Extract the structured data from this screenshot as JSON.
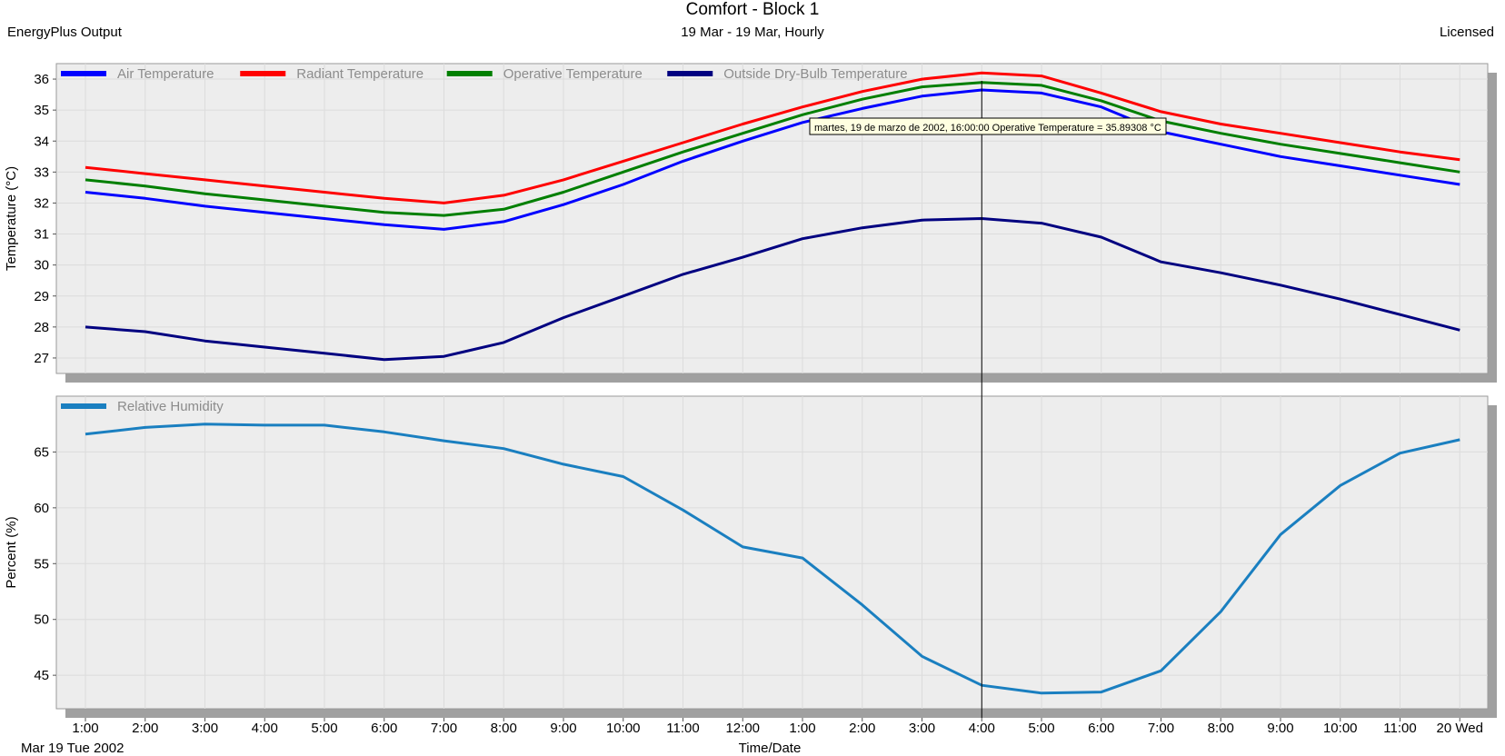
{
  "header": {
    "title": "Comfort - Block 1",
    "subtitle": "19 Mar - 19 Mar, Hourly",
    "left_label": "EnergyPlus Output",
    "right_label": "Licensed"
  },
  "tooltip": {
    "text": "martes, 19 de marzo de 2002, 16:00:00  Operative Temperature = 35.89308 °C",
    "x": "4:00"
  },
  "x_axis": {
    "ticks": [
      "1:00",
      "2:00",
      "3:00",
      "4:00",
      "5:00",
      "6:00",
      "7:00",
      "8:00",
      "9:00",
      "10:00",
      "11:00",
      "12:00",
      "1:00",
      "2:00",
      "3:00",
      "4:00",
      "5:00",
      "6:00",
      "7:00",
      "8:00",
      "9:00",
      "10:00",
      "11:00",
      "20 Wed"
    ],
    "date_label": "Mar  19 Tue 2002",
    "label": "Time/Date"
  },
  "chart_data": [
    {
      "type": "line",
      "ylabel": "Temperature (°C)",
      "ylim": [
        26.5,
        36.5
      ],
      "yticks": [
        27,
        28,
        29,
        30,
        31,
        32,
        33,
        34,
        35,
        36
      ],
      "grid": true,
      "legend_position": "top-left",
      "series": [
        {
          "name": "Air Temperature",
          "color": "#0000ff",
          "values": [
            32.35,
            32.15,
            31.9,
            31.7,
            31.5,
            31.3,
            31.15,
            31.4,
            31.95,
            32.6,
            33.35,
            34.0,
            34.6,
            35.05,
            35.45,
            35.65,
            35.55,
            35.1,
            34.3,
            33.9,
            33.5,
            33.2,
            32.9,
            32.6
          ]
        },
        {
          "name": "Radiant Temperature",
          "color": "#ff0000",
          "values": [
            33.15,
            32.95,
            32.75,
            32.55,
            32.35,
            32.15,
            32.0,
            32.25,
            32.75,
            33.35,
            33.95,
            34.55,
            35.1,
            35.6,
            36.0,
            36.2,
            36.1,
            35.55,
            34.95,
            34.55,
            34.25,
            33.95,
            33.65,
            33.4
          ]
        },
        {
          "name": "Operative Temperature",
          "color": "#007f00",
          "values": [
            32.75,
            32.55,
            32.3,
            32.1,
            31.9,
            31.7,
            31.6,
            31.8,
            32.35,
            33.0,
            33.65,
            34.25,
            34.85,
            35.35,
            35.75,
            35.89,
            35.8,
            35.3,
            34.65,
            34.25,
            33.9,
            33.6,
            33.3,
            33.0
          ]
        },
        {
          "name": "Outside Dry-Bulb Temperature",
          "color": "#000080",
          "values": [
            28.0,
            27.85,
            27.55,
            27.35,
            27.15,
            26.95,
            27.05,
            27.5,
            28.3,
            29.0,
            29.7,
            30.25,
            30.85,
            31.2,
            31.45,
            31.5,
            31.35,
            30.9,
            30.1,
            29.75,
            29.35,
            28.9,
            28.4,
            27.9
          ]
        }
      ]
    },
    {
      "type": "line",
      "ylabel": "Percent (%)",
      "ylim": [
        42,
        70
      ],
      "yticks": [
        45,
        50,
        55,
        60,
        65
      ],
      "grid": true,
      "legend_position": "top-left",
      "series": [
        {
          "name": "Relative Humidity",
          "color": "#1a7fc0",
          "values": [
            66.6,
            67.2,
            67.5,
            67.4,
            67.4,
            66.8,
            66.0,
            65.3,
            63.9,
            62.8,
            59.8,
            56.5,
            55.5,
            51.3,
            46.7,
            44.1,
            43.4,
            43.5,
            45.4,
            50.7,
            57.6,
            62.0,
            64.9,
            66.1
          ]
        }
      ]
    }
  ]
}
